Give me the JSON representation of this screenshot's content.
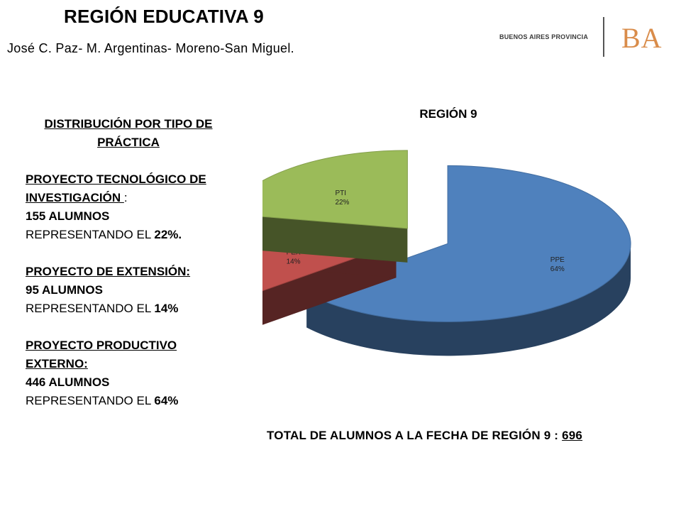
{
  "header": {
    "title": "REGIÓN EDUCATIVA 9",
    "subtitle": "José C. Paz- M. Argentinas- Moreno-San Miguel.",
    "logo_text": "BUENOS AIRES PROVINCIA",
    "logo_mark": "BA"
  },
  "summary": {
    "heading": "DISTRIBUCIÓN POR TIPO DE PRÁCTICA",
    "items": [
      {
        "name": "PROYECTO TECNOLÓGICO DE INVESTIGACIÓN ",
        "suffix": ":",
        "count": "155 ALUMNOS",
        "rep_prefix": "REPRESENTANDO EL ",
        "rep_pct": "22%."
      },
      {
        "name": "PROYECTO DE EXTENSIÓN:",
        "suffix": "",
        "count": "95 ALUMNOS",
        "rep_prefix": "REPRESENTANDO EL ",
        "rep_pct": "14%"
      },
      {
        "name": "PROYECTO PRODUCTIVO EXTERNO:",
        "suffix": "",
        "count": "446 ALUMNOS",
        "rep_prefix": "REPRESENTANDO EL ",
        "rep_pct": "64%"
      }
    ]
  },
  "chart_data": {
    "type": "pie",
    "title": "REGIÓN 9",
    "labels": [
      "PPE",
      "PEX",
      "PTI"
    ],
    "values": [
      64,
      14,
      22
    ],
    "value_labels": [
      "64%",
      "14%",
      "22%"
    ],
    "colors": [
      "#4f81bd",
      "#c0504d",
      "#9bbb59"
    ],
    "style": "3d-exploded"
  },
  "footer": {
    "total_label": "TOTAL DE ALUMNOS A LA FECHA DE REGIÓN  9 :  ",
    "total_value": "696"
  }
}
